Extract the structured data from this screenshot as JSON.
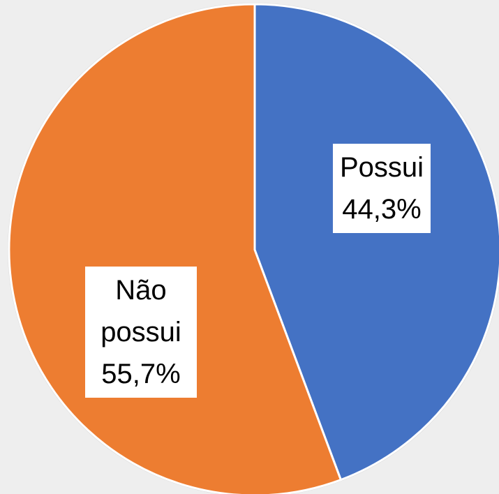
{
  "chart_data": {
    "type": "pie",
    "categories": [
      "Possui",
      "Não possui"
    ],
    "values": [
      44.3,
      55.7
    ],
    "value_labels": [
      "44,3%",
      "55,7%"
    ],
    "colors": [
      "#4472c4",
      "#ed7d31"
    ]
  }
}
